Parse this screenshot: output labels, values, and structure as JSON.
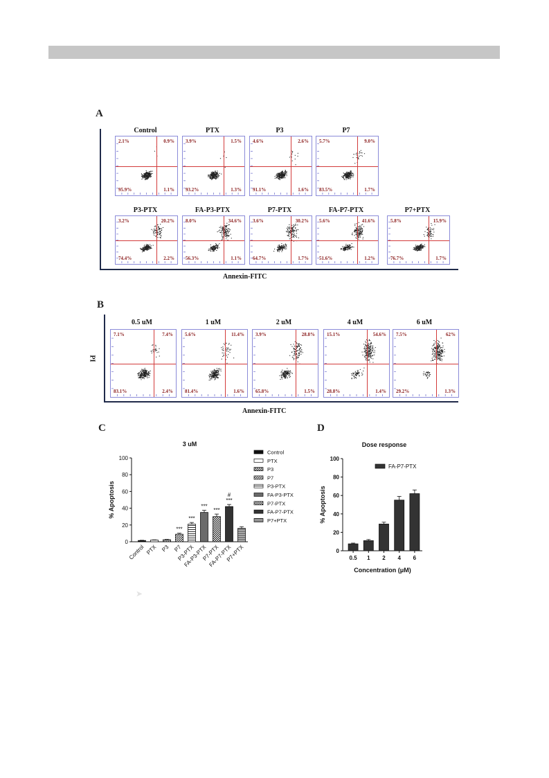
{
  "panel_a": {
    "letter": "A",
    "x_axis_label": "Annexin-FITC",
    "row1": [
      {
        "title": "Control",
        "ul": "2.1%",
        "ur": "0.9%",
        "ll": "95.9%",
        "lr": "1.1%"
      },
      {
        "title": "PTX",
        "ul": "3.9%",
        "ur": "1.5%",
        "ll": "93.2%",
        "lr": "1.3%"
      },
      {
        "title": "P3",
        "ul": "4.6%",
        "ur": "2.6%",
        "ll": "91.1%",
        "lr": "1.6%"
      },
      {
        "title": "P7",
        "ul": "5.7%",
        "ur": "9.0%",
        "ll": "83.5%",
        "lr": "1.7%"
      }
    ],
    "row2": [
      {
        "title": "P3-PTX",
        "ul": "3.2%",
        "ur": "20.2%",
        "ll": "74.4%",
        "lr": "2.2%"
      },
      {
        "title": "FA-P3-PTX",
        "ul": "8.0%",
        "ur": "34.6%",
        "ll": "56.3%",
        "lr": "1.1%"
      },
      {
        "title": "P7-PTX",
        "ul": "3.6%",
        "ur": "30.2%",
        "ll": "64.7%",
        "lr": "1.7%"
      },
      {
        "title": "FA-P7-PTX",
        "ul": "5.6%",
        "ur": "41.6%",
        "ll": "51.6%",
        "lr": "1.2%"
      },
      {
        "title": "P7+PTX",
        "ul": "5.8%",
        "ur": "15.9%",
        "ll": "76.7%",
        "lr": "1.7%"
      }
    ]
  },
  "panel_b": {
    "letter": "B",
    "y_axis_label": "PI",
    "x_axis_label": "Annexin-FITC",
    "row": [
      {
        "title": "0.5 uM",
        "ul": "7.1%",
        "ur": "7.4%",
        "ll": "83.1%",
        "lr": "2.4%"
      },
      {
        "title": "1 uM",
        "ul": "5.6%",
        "ur": "11.4%",
        "ll": "81.4%",
        "lr": "1.6%"
      },
      {
        "title": "2 uM",
        "ul": "3.9%",
        "ur": "28.8%",
        "ll": "65.8%",
        "lr": "1.5%"
      },
      {
        "title": "4 uM",
        "ul": "15.1%",
        "ur": "54.6%",
        "ll": "28.8%",
        "lr": "1.4%"
      },
      {
        "title": "6 uM",
        "ul": "7.5%",
        "ur": "62%",
        "ll": "29.2%",
        "lr": "1.3%"
      }
    ]
  },
  "panel_c": {
    "letter": "C"
  },
  "panel_d": {
    "letter": "D"
  },
  "chart_data": [
    {
      "type": "bar",
      "title": "3 uM",
      "ylabel": "% Apoptosis",
      "xlabel": "",
      "ylim": [
        0,
        100
      ],
      "yticks": [
        0,
        20,
        40,
        60,
        80,
        100
      ],
      "categories": [
        "Control",
        "PTX",
        "P3",
        "P7",
        "P3-PTX",
        "FA-P3-PTX",
        "P7-PTX",
        "FA-P7-PTX",
        "P7+PTX"
      ],
      "values": [
        1.5,
        2,
        2.5,
        9,
        21,
        35,
        30,
        42,
        16
      ],
      "errors": [
        0.3,
        0.3,
        0.4,
        1.2,
        2,
        2.5,
        3,
        2.5,
        2
      ],
      "annotations": [
        "",
        "",
        "",
        "***",
        "***",
        "***",
        "***",
        "#\n***",
        ""
      ],
      "legend": [
        "Control",
        "PTX",
        "P3",
        "P7",
        "P3-PTX",
        "FA-P3-PTX",
        "P7-PTX",
        "FA-P7-PTX",
        "P7+PTX"
      ],
      "legend_position": "right",
      "grid": false
    },
    {
      "type": "bar",
      "title": "Dose response",
      "ylabel": "% Apoptosis",
      "xlabel": "Concentration (μM)",
      "ylim": [
        0,
        100
      ],
      "yticks": [
        0,
        20,
        40,
        60,
        80,
        100
      ],
      "categories": [
        "0.5",
        "1",
        "2",
        "4",
        "6"
      ],
      "series": [
        {
          "name": "FA-P7-PTX",
          "values": [
            7.5,
            11,
            29,
            55,
            62
          ],
          "errors": [
            0.8,
            1.2,
            2,
            4,
            4
          ]
        }
      ],
      "legend_position": "top-right",
      "grid": false
    }
  ]
}
